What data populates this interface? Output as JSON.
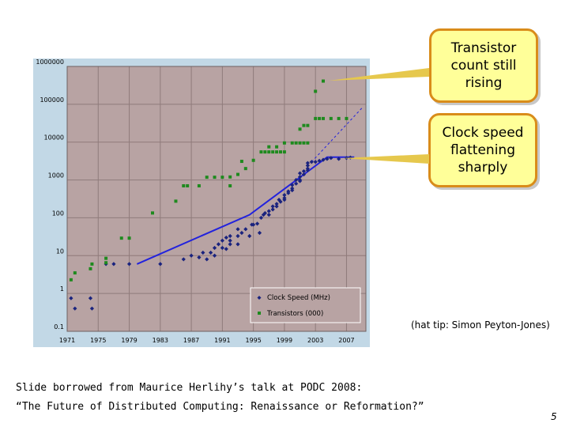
{
  "slide": {
    "callout_transistor": [
      "Transistor",
      "count still",
      "rising"
    ],
    "callout_clock": [
      "Clock speed",
      "flattening",
      "sharply"
    ],
    "hat_tip": "(hat tip: Simon Peyton-Jones)",
    "caption_line1": "Slide borrowed from Maurice Herlihy’s talk at PODC 2008:",
    "caption_line2": "“The Future of Distributed Computing: Renaissance or Reformation?”",
    "page_number": "5"
  },
  "colors": {
    "plot_background": "#b8a3a3",
    "frame_background": "#c2d8e6",
    "clock_series": "#1a237e",
    "transistor_series": "#1e8a1e",
    "trend_line": "#2222dd",
    "callout_fill": "#ffff99",
    "callout_border": "#d98c1a",
    "arrow": "#e6c84d"
  },
  "chart_data": {
    "type": "scatter",
    "title": "",
    "xlabel": "",
    "ylabel": "",
    "y_scale": "log",
    "grid": true,
    "legend_position": "bottom-right",
    "xlim": [
      1971,
      2009.5
    ],
    "ylim": [
      0.1,
      1000000
    ],
    "x_ticks": [
      "1971",
      "1975",
      "1979",
      "1983",
      "1987",
      "1991",
      "1995",
      "1999",
      "2003",
      "2007"
    ],
    "y_ticks": [
      "1000000",
      "100000",
      "10000",
      "1000",
      "100",
      "10",
      "1",
      "0.1"
    ],
    "y_tick_values": [
      1000000,
      100000,
      10000,
      1000,
      100,
      10,
      1,
      0.1
    ],
    "series": [
      {
        "name": "Clock Speed (MHz)",
        "marker": "diamond",
        "points": [
          [
            1971.5,
            0.75
          ],
          [
            1972,
            0.4
          ],
          [
            1974,
            0.75
          ],
          [
            1974.2,
            0.4
          ],
          [
            1976,
            6
          ],
          [
            1977,
            6
          ],
          [
            1979,
            6
          ],
          [
            1983,
            6
          ],
          [
            1986,
            8
          ],
          [
            1987,
            10
          ],
          [
            1988,
            9
          ],
          [
            1988.5,
            12
          ],
          [
            1989,
            8
          ],
          [
            1989.5,
            12
          ],
          [
            1990,
            10
          ],
          [
            1990,
            16
          ],
          [
            1990.5,
            20
          ],
          [
            1991,
            16
          ],
          [
            1991,
            25
          ],
          [
            1991.5,
            15
          ],
          [
            1991.5,
            30
          ],
          [
            1992,
            20
          ],
          [
            1992,
            25
          ],
          [
            1992,
            33
          ],
          [
            1993,
            33
          ],
          [
            1993,
            50
          ],
          [
            1993,
            20
          ],
          [
            1993.5,
            40
          ],
          [
            1994,
            50
          ],
          [
            1994.5,
            33
          ],
          [
            1994.8,
            66
          ],
          [
            1995,
            66
          ],
          [
            1995.5,
            70
          ],
          [
            1995.8,
            40
          ],
          [
            1996,
            100
          ],
          [
            1996.3,
            120
          ],
          [
            1996.5,
            133
          ],
          [
            1997,
            150
          ],
          [
            1997,
            120
          ],
          [
            1997.5,
            166
          ],
          [
            1997.5,
            200
          ],
          [
            1998,
            200
          ],
          [
            1998,
            233
          ],
          [
            1998.3,
            300
          ],
          [
            1998.5,
            266
          ],
          [
            1999,
            300
          ],
          [
            1999,
            400
          ],
          [
            1999,
            333
          ],
          [
            1999.5,
            450
          ],
          [
            1999.5,
            500
          ],
          [
            2000,
            533
          ],
          [
            2000,
            600
          ],
          [
            2000,
            733
          ],
          [
            2000.5,
            800
          ],
          [
            2000.5,
            1000
          ],
          [
            2001,
            1000
          ],
          [
            2001,
            1200
          ],
          [
            2001,
            1500
          ],
          [
            2001,
            933
          ],
          [
            2001.5,
            1400
          ],
          [
            2001.5,
            1700
          ],
          [
            2002,
            1800
          ],
          [
            2002,
            2000
          ],
          [
            2002,
            2400
          ],
          [
            2002,
            2800
          ],
          [
            2002.5,
            3000
          ],
          [
            2003,
            3000
          ],
          [
            2003.5,
            3200
          ],
          [
            2004,
            3400
          ],
          [
            2004.5,
            3600
          ],
          [
            2005,
            3800
          ],
          [
            2006,
            3600
          ],
          [
            2007,
            3800
          ],
          [
            2007.5,
            3900
          ]
        ]
      },
      {
        "name": "Transistors (000)",
        "marker": "square",
        "points": [
          [
            1971.5,
            2.3
          ],
          [
            1972,
            3.5
          ],
          [
            1974,
            4.5
          ],
          [
            1974.2,
            6
          ],
          [
            1976,
            6.5
          ],
          [
            1976,
            8.5
          ],
          [
            1978,
            29
          ],
          [
            1979,
            29
          ],
          [
            1982,
            134
          ],
          [
            1985,
            275
          ],
          [
            1986,
            700
          ],
          [
            1986.5,
            700
          ],
          [
            1988,
            700
          ],
          [
            1989,
            1180
          ],
          [
            1990,
            1180
          ],
          [
            1991,
            1180
          ],
          [
            1992,
            1200
          ],
          [
            1992,
            700
          ],
          [
            1993,
            1400
          ],
          [
            1993.5,
            3100
          ],
          [
            1994,
            2000
          ],
          [
            1995,
            3300
          ],
          [
            1996,
            5500
          ],
          [
            1996.5,
            5500
          ],
          [
            1997,
            5500
          ],
          [
            1997.5,
            5500
          ],
          [
            1998,
            5500
          ],
          [
            1998.5,
            5500
          ],
          [
            1999,
            5500
          ],
          [
            1997,
            7500
          ],
          [
            1998,
            7500
          ],
          [
            1999,
            9500
          ],
          [
            2000,
            9500
          ],
          [
            2000.5,
            9500
          ],
          [
            2001,
            9500
          ],
          [
            2001.5,
            9500
          ],
          [
            2002,
            9500
          ],
          [
            2001,
            22000
          ],
          [
            2001.5,
            27500
          ],
          [
            2002,
            27500
          ],
          [
            2003,
            42000
          ],
          [
            2003.5,
            42000
          ],
          [
            2004,
            42000
          ],
          [
            2005,
            42000
          ],
          [
            2006,
            42000
          ],
          [
            2007,
            42000
          ],
          [
            2003,
            220000
          ],
          [
            2004,
            410000
          ]
        ]
      }
    ],
    "trend_line": [
      [
        1980,
        6
      ],
      [
        1994.5,
        120
      ],
      [
        2004.5,
        4000
      ],
      [
        2008,
        4000
      ]
    ],
    "trend_extension": [
      [
        2002.5,
        3000
      ],
      [
        2009,
        80000
      ]
    ]
  }
}
